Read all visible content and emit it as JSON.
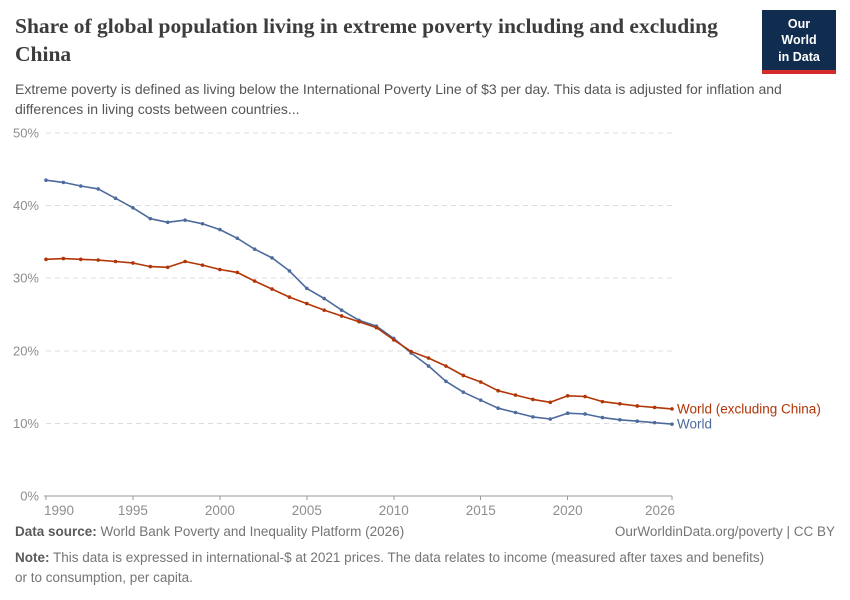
{
  "header": {
    "title": "Share of global population living in extreme poverty including and excluding China",
    "subtitle": "Extreme poverty is defined as living below the International Poverty Line of $3 per day. This data is adjusted for inflation and differences in living costs between countries...",
    "logo": {
      "line1": "Our World",
      "line2": "in Data",
      "bg": "#102d50",
      "stripe": "#d42b2b"
    }
  },
  "chart_data": {
    "type": "line",
    "title": "Share of global population living in extreme poverty including and excluding China",
    "x": [
      1990,
      1991,
      1992,
      1993,
      1994,
      1995,
      1996,
      1997,
      1998,
      1999,
      2000,
      2001,
      2002,
      2003,
      2004,
      2005,
      2006,
      2007,
      2008,
      2009,
      2010,
      2011,
      2012,
      2013,
      2014,
      2015,
      2016,
      2017,
      2018,
      2019,
      2020,
      2021,
      2022,
      2023,
      2024,
      2025,
      2026
    ],
    "series": [
      {
        "name": "World",
        "color": "#4c6a9c",
        "values": [
          43.5,
          43.2,
          42.7,
          42.3,
          41.0,
          39.7,
          38.2,
          37.7,
          38.0,
          37.5,
          36.7,
          35.5,
          34.0,
          32.8,
          31.0,
          28.6,
          27.2,
          25.6,
          24.2,
          23.4,
          21.7,
          19.7,
          17.9,
          15.8,
          14.3,
          13.2,
          12.1,
          11.5,
          10.9,
          10.6,
          11.4,
          11.3,
          10.8,
          10.5,
          10.3,
          10.1,
          9.9
        ]
      },
      {
        "name": "World (excluding China)",
        "color": "#b13507",
        "values": [
          32.6,
          32.7,
          32.6,
          32.5,
          32.3,
          32.1,
          31.6,
          31.5,
          32.3,
          31.8,
          31.2,
          30.8,
          29.6,
          28.5,
          27.4,
          26.5,
          25.6,
          24.8,
          24.0,
          23.2,
          21.5,
          19.9,
          19.0,
          17.9,
          16.6,
          15.7,
          14.5,
          13.9,
          13.3,
          12.9,
          13.8,
          13.7,
          13.0,
          12.7,
          12.4,
          12.2,
          12.0
        ]
      }
    ],
    "ylim": [
      0,
      50
    ],
    "yticks": [
      0,
      10,
      20,
      30,
      40,
      50
    ],
    "ytick_suffix": "%",
    "xticks": [
      1990,
      1995,
      2000,
      2005,
      2010,
      2015,
      2020,
      2026
    ],
    "grid": "horizontal-dashed",
    "legend_position": "end-of-line-labels",
    "axis_color": "#999999",
    "grid_color": "#dcdcdc",
    "tick_label_color": "#8e8e8e"
  },
  "footer": {
    "datasource_label": "Data source:",
    "datasource_text": " World Bank Poverty and Inequality Platform (2026)",
    "attribution": "OurWorldinData.org/poverty | CC BY",
    "note_label": "Note:",
    "note_text": " This data is expressed in international-$ at 2021 prices. The data relates to income (measured after taxes and benefits) or to consumption, per capita."
  }
}
